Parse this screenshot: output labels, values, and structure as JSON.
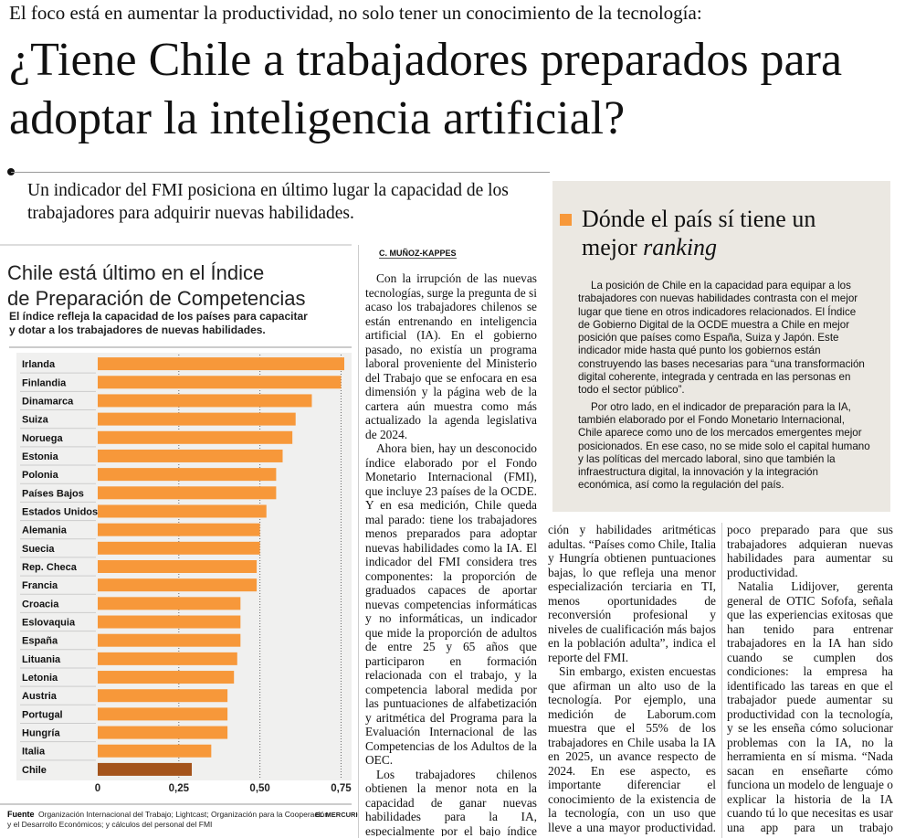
{
  "header": {
    "kicker": "El foco está en aumentar la productividad, no solo tener un conocimiento de la tecnología:",
    "title": "¿Tiene Chile a trabajadores preparados para adoptar la inteligencia artificial?",
    "deck": "Un indicador del FMI posiciona en último lugar la capacidad de los trabajadores para adquirir nuevas habilidades."
  },
  "chart_data": {
    "type": "bar",
    "orientation": "horizontal",
    "title": "Chile está último en el Índice de Preparación de Competencias",
    "subtitle": "El índice refleja la capacidad de los países para capacitar y dotar a los trabajadores de nuevas habilidades.",
    "categories": [
      "Irlanda",
      "Finlandia",
      "Dinamarca",
      "Suiza",
      "Noruega",
      "Estonia",
      "Polonia",
      "Países Bajos",
      "Estados Unidos",
      "Alemania",
      "Suecia",
      "Rep. Checa",
      "Francia",
      "Croacia",
      "Eslovaquia",
      "España",
      "Lituania",
      "Letonia",
      "Austria",
      "Portugal",
      "Hungría",
      "Italia",
      "Chile"
    ],
    "values": [
      0.76,
      0.75,
      0.66,
      0.61,
      0.6,
      0.57,
      0.55,
      0.55,
      0.52,
      0.5,
      0.5,
      0.49,
      0.49,
      0.44,
      0.44,
      0.44,
      0.43,
      0.42,
      0.4,
      0.4,
      0.4,
      0.35,
      0.29
    ],
    "colors": [
      "#f7983a",
      "#f7983a",
      "#f7983a",
      "#f7983a",
      "#f7983a",
      "#f7983a",
      "#f7983a",
      "#f7983a",
      "#f7983a",
      "#f7983a",
      "#f7983a",
      "#f7983a",
      "#f7983a",
      "#f7983a",
      "#f7983a",
      "#f7983a",
      "#f7983a",
      "#f7983a",
      "#f7983a",
      "#f7983a",
      "#f7983a",
      "#f7983a",
      "#a4531b"
    ],
    "xlim": [
      0,
      0.76
    ],
    "xticks": [
      0,
      {
        "value": 0.25,
        "label": "0,25"
      },
      {
        "value": 0.5,
        "label": "0,50"
      },
      {
        "value": 0.75,
        "label": "0,75"
      }
    ],
    "grid": true,
    "source_label": "Fuente",
    "source": "Organización Internacional del Trabajo; Lightcast; Organización para la Cooperación y el Desarrollo Económicos; y cálculos del personal del FMI",
    "credit": "EL MERCURIO"
  },
  "article": {
    "byline": "C. MUÑOZ-KAPPES",
    "columns": [
      [
        "Con la irrupción de las nuevas tecnologías, surge la pregunta de si acaso los trabajadores chilenos se están entrenando en inteligencia artificial (IA). En el gobierno pasado, no existía un programa laboral proveniente del Ministerio del Trabajo que se enfocara en esa dimensión y la página web de la cartera aún muestra como más actualizado la agenda legislativa de 2024.",
        "Ahora bien, hay un desconocido índice elaborado por el Fondo Monetario Internacional (FMI), que incluye 23 países de la OCDE. Y en esa medición, Chile queda mal parado: tiene los trabajadores menos preparados para adoptar nuevas habilidades como la IA. El indicador del FMI considera tres componentes: la proporción de graduados capaces de aportar nuevas competencias informáticas y no informáticas, un indicador que mide la proporción de adultos de entre 25 y 65 años que participaron en formación relacionada con el trabajo, y la competencia laboral medida por las puntuaciones de alfabetización y aritmética del Programa para la Evaluación Internacional de las Competencias de los Adultos de la OEC.",
        "Los trabajadores chilenos obtienen la menor nota en la capacidad de ganar nuevas habilidades para la IA, especialmente por el bajo índice de alfabetiza-"
      ],
      [
        "ción y habilidades aritméticas adultas. “Países como Chile, Italia y Hungría obtienen puntuaciones bajas, lo que refleja una menor especialización terciaria en TI, menos oportunidades de reconversión profesional y niveles de cualificación más bajos en la población adulta”, indica el reporte del FMI.",
        "Sin embargo, existen encuestas que afirman un alto uso de la tecnología. Por ejemplo, una medición de Laborum.com muestra que el 55% de los trabajadores en Chile usaba la IA en 2025, un avance respecto de 2024. En ese aspecto, es importante diferenciar el conocimiento de la existencia de la tecnología, con un uso que lleve a una mayor productividad. A lo que el FMI apunta es que el país está"
      ],
      [
        "poco preparado para que sus trabajadores adquieran nuevas habilidades para aumentar su productividad.",
        "Natalia Lidijover, gerenta general de OTIC Sofofa, señala que las experiencias exitosas que han tenido para entrenar trabajadores en la IA han sido cuando se cumplen dos condiciones: la empresa ha identificado las tareas en que el trabajador puede aumentar su productividad con la tecnología, y se les enseña cómo solucionar problemas con la IA, no la herramienta en sí misma. “Nada sacan en enseñarte cómo funciona un modelo de lenguaje o explicar la historia de la IA cuando tú lo que necesitas es usar una app para un trabajo específico y que te enseñe a hacerlo bien”, comenta."
      ]
    ]
  },
  "sidebar": {
    "title": "Dónde el país sí tiene un mejor",
    "title_italic": "ranking",
    "paragraphs": [
      "La posición de Chile en la capacidad para equipar a los trabajadores con nuevas habilidades contrasta con el mejor lugar que tiene en otros indicadores relacionados. El Índice de Gobierno Digital de la OCDE muestra a Chile en mejor posición que países como España, Suiza y Japón. Este indicador mide hasta qué punto los gobiernos están construyendo las bases necesarias para “una transformación digital coherente, integrada y centrada en las personas en todo el sector público”.",
      "Por otro lado, en el indicador de preparación para la IA, también elaborado por el Fondo Monetario Internacional, Chile aparece como uno de los mercados emergentes mejor posicionados. En ese caso, no se mide solo el capital humano y las políticas del mercado laboral, sino que también la infraestructura digital, la innovación y la integración económica, así como la regulación del país."
    ]
  }
}
